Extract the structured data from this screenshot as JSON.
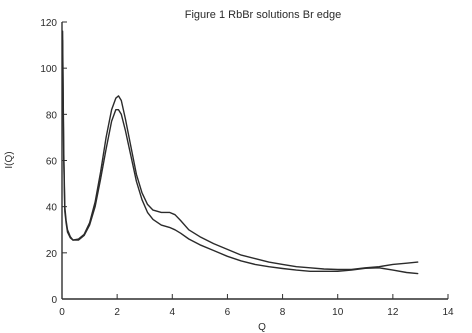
{
  "chart_data": {
    "type": "line",
    "title": "Figure 1 RbBr solutions Br edge",
    "xlabel": "Q",
    "ylabel": "I(Q)",
    "xlim": [
      0,
      14
    ],
    "ylim": [
      0,
      120
    ],
    "xticks": [
      0,
      2,
      4,
      6,
      8,
      10,
      12,
      14
    ],
    "yticks": [
      0,
      20,
      40,
      60,
      80,
      100,
      120
    ],
    "grid": false,
    "colors": {
      "line": "#2b2b2b",
      "axes": "#2f2f2f"
    },
    "series": [
      {
        "x": [
          0.02,
          0.06,
          0.1,
          0.15,
          0.2,
          0.3,
          0.4,
          0.6,
          0.8,
          1.0,
          1.2,
          1.4,
          1.6,
          1.8,
          1.95,
          2.05,
          2.15,
          2.3,
          2.5,
          2.7,
          2.9,
          3.1,
          3.3,
          3.6,
          3.9,
          4.1,
          4.3,
          4.6,
          5.0,
          5.5,
          6.0,
          6.5,
          7.0,
          7.5,
          8.0,
          8.5,
          9.0,
          9.5,
          10.0,
          10.5,
          11.0,
          11.5,
          12.0,
          12.5,
          12.9
        ],
        "y": [
          112,
          62,
          38,
          33,
          29,
          26.5,
          25.5,
          26,
          28,
          33,
          42,
          55,
          70,
          82,
          87,
          88,
          86,
          78,
          66,
          54,
          46,
          41,
          38.5,
          37.5,
          37.5,
          36.5,
          34,
          30,
          27,
          24,
          21.5,
          19,
          17.5,
          16,
          15,
          14,
          13.5,
          13,
          12.8,
          12.8,
          13.5,
          14,
          15,
          15.5,
          16
        ]
      },
      {
        "x": [
          0.02,
          0.06,
          0.1,
          0.15,
          0.2,
          0.3,
          0.4,
          0.6,
          0.8,
          1.0,
          1.2,
          1.4,
          1.6,
          1.8,
          1.95,
          2.05,
          2.15,
          2.3,
          2.5,
          2.7,
          2.9,
          3.1,
          3.3,
          3.6,
          3.9,
          4.1,
          4.3,
          4.6,
          5.0,
          5.5,
          6.0,
          6.5,
          7.0,
          7.5,
          8.0,
          8.5,
          9.0,
          9.5,
          10.0,
          10.5,
          11.0,
          11.5,
          12.0,
          12.5,
          12.9
        ],
        "y": [
          116,
          65,
          40,
          34,
          30,
          27,
          25.5,
          25.5,
          27.5,
          32,
          40,
          52,
          65,
          77,
          82,
          82,
          80,
          73,
          62,
          51,
          43,
          37.5,
          34.5,
          32,
          31,
          30,
          28.5,
          26,
          23.5,
          21,
          18.5,
          16.5,
          15,
          14,
          13.2,
          12.5,
          12,
          12,
          12,
          12.5,
          13.3,
          13.5,
          12.5,
          11.5,
          11
        ]
      }
    ]
  }
}
